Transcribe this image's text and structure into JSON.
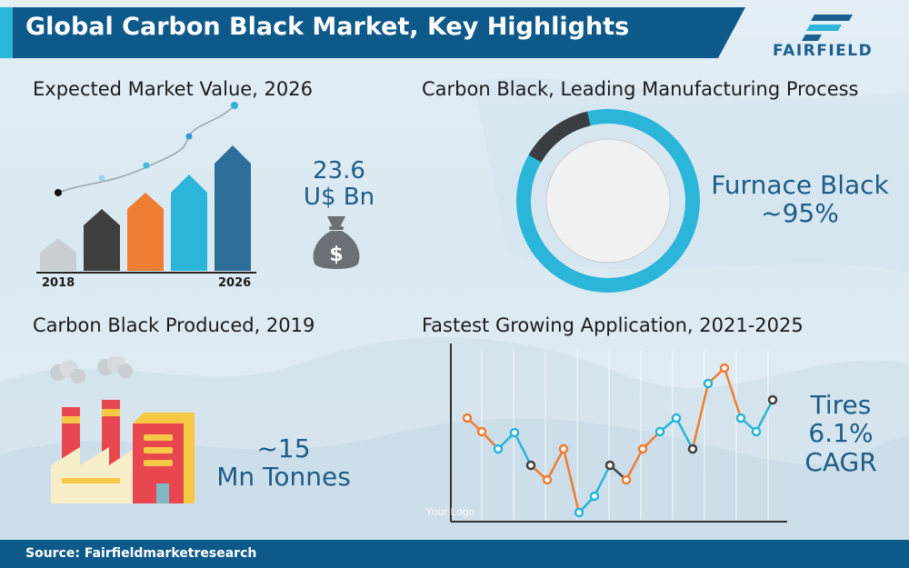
{
  "header": {
    "title": "Global Carbon Black Market, Key Highlights",
    "logo_text": "FAIRFIELD"
  },
  "panels": {
    "market_value": {
      "title": "Expected Market Value, 2026",
      "value_line1": "23.6",
      "value_line2": "U$ Bn",
      "money_bag_icon": "dollar-money-bag-icon",
      "year_start": "2018",
      "year_end": "2026"
    },
    "process": {
      "title": "Carbon Black, Leading Manufacturing Process",
      "value_line1": "Furnace Black",
      "value_line2": "~95%",
      "share": 0.95
    },
    "produced": {
      "title": "Carbon Black Produced, 2019",
      "value_line1": "~15",
      "value_line2": "Mn Tonnes",
      "factory_icon": "factory-icon"
    },
    "application": {
      "title": "Fastest Growing Application, 2021-2025",
      "value_line1": "Tires",
      "value_line2": "6.1%",
      "value_line3": "CAGR",
      "watermark": "Your Logo"
    }
  },
  "footer": {
    "source": "Source: Fairfieldmarketresearch"
  },
  "colors": {
    "brand_blue": "#0d5a8a",
    "accent_blue": "#1e5c86",
    "cyan": "#2bb5d8",
    "orange": "#ef7d32",
    "dark_gray": "#3f3f3f",
    "light_gray": "#c9ced3",
    "factory_red": "#e8474f",
    "factory_yellow": "#f7c845"
  }
}
